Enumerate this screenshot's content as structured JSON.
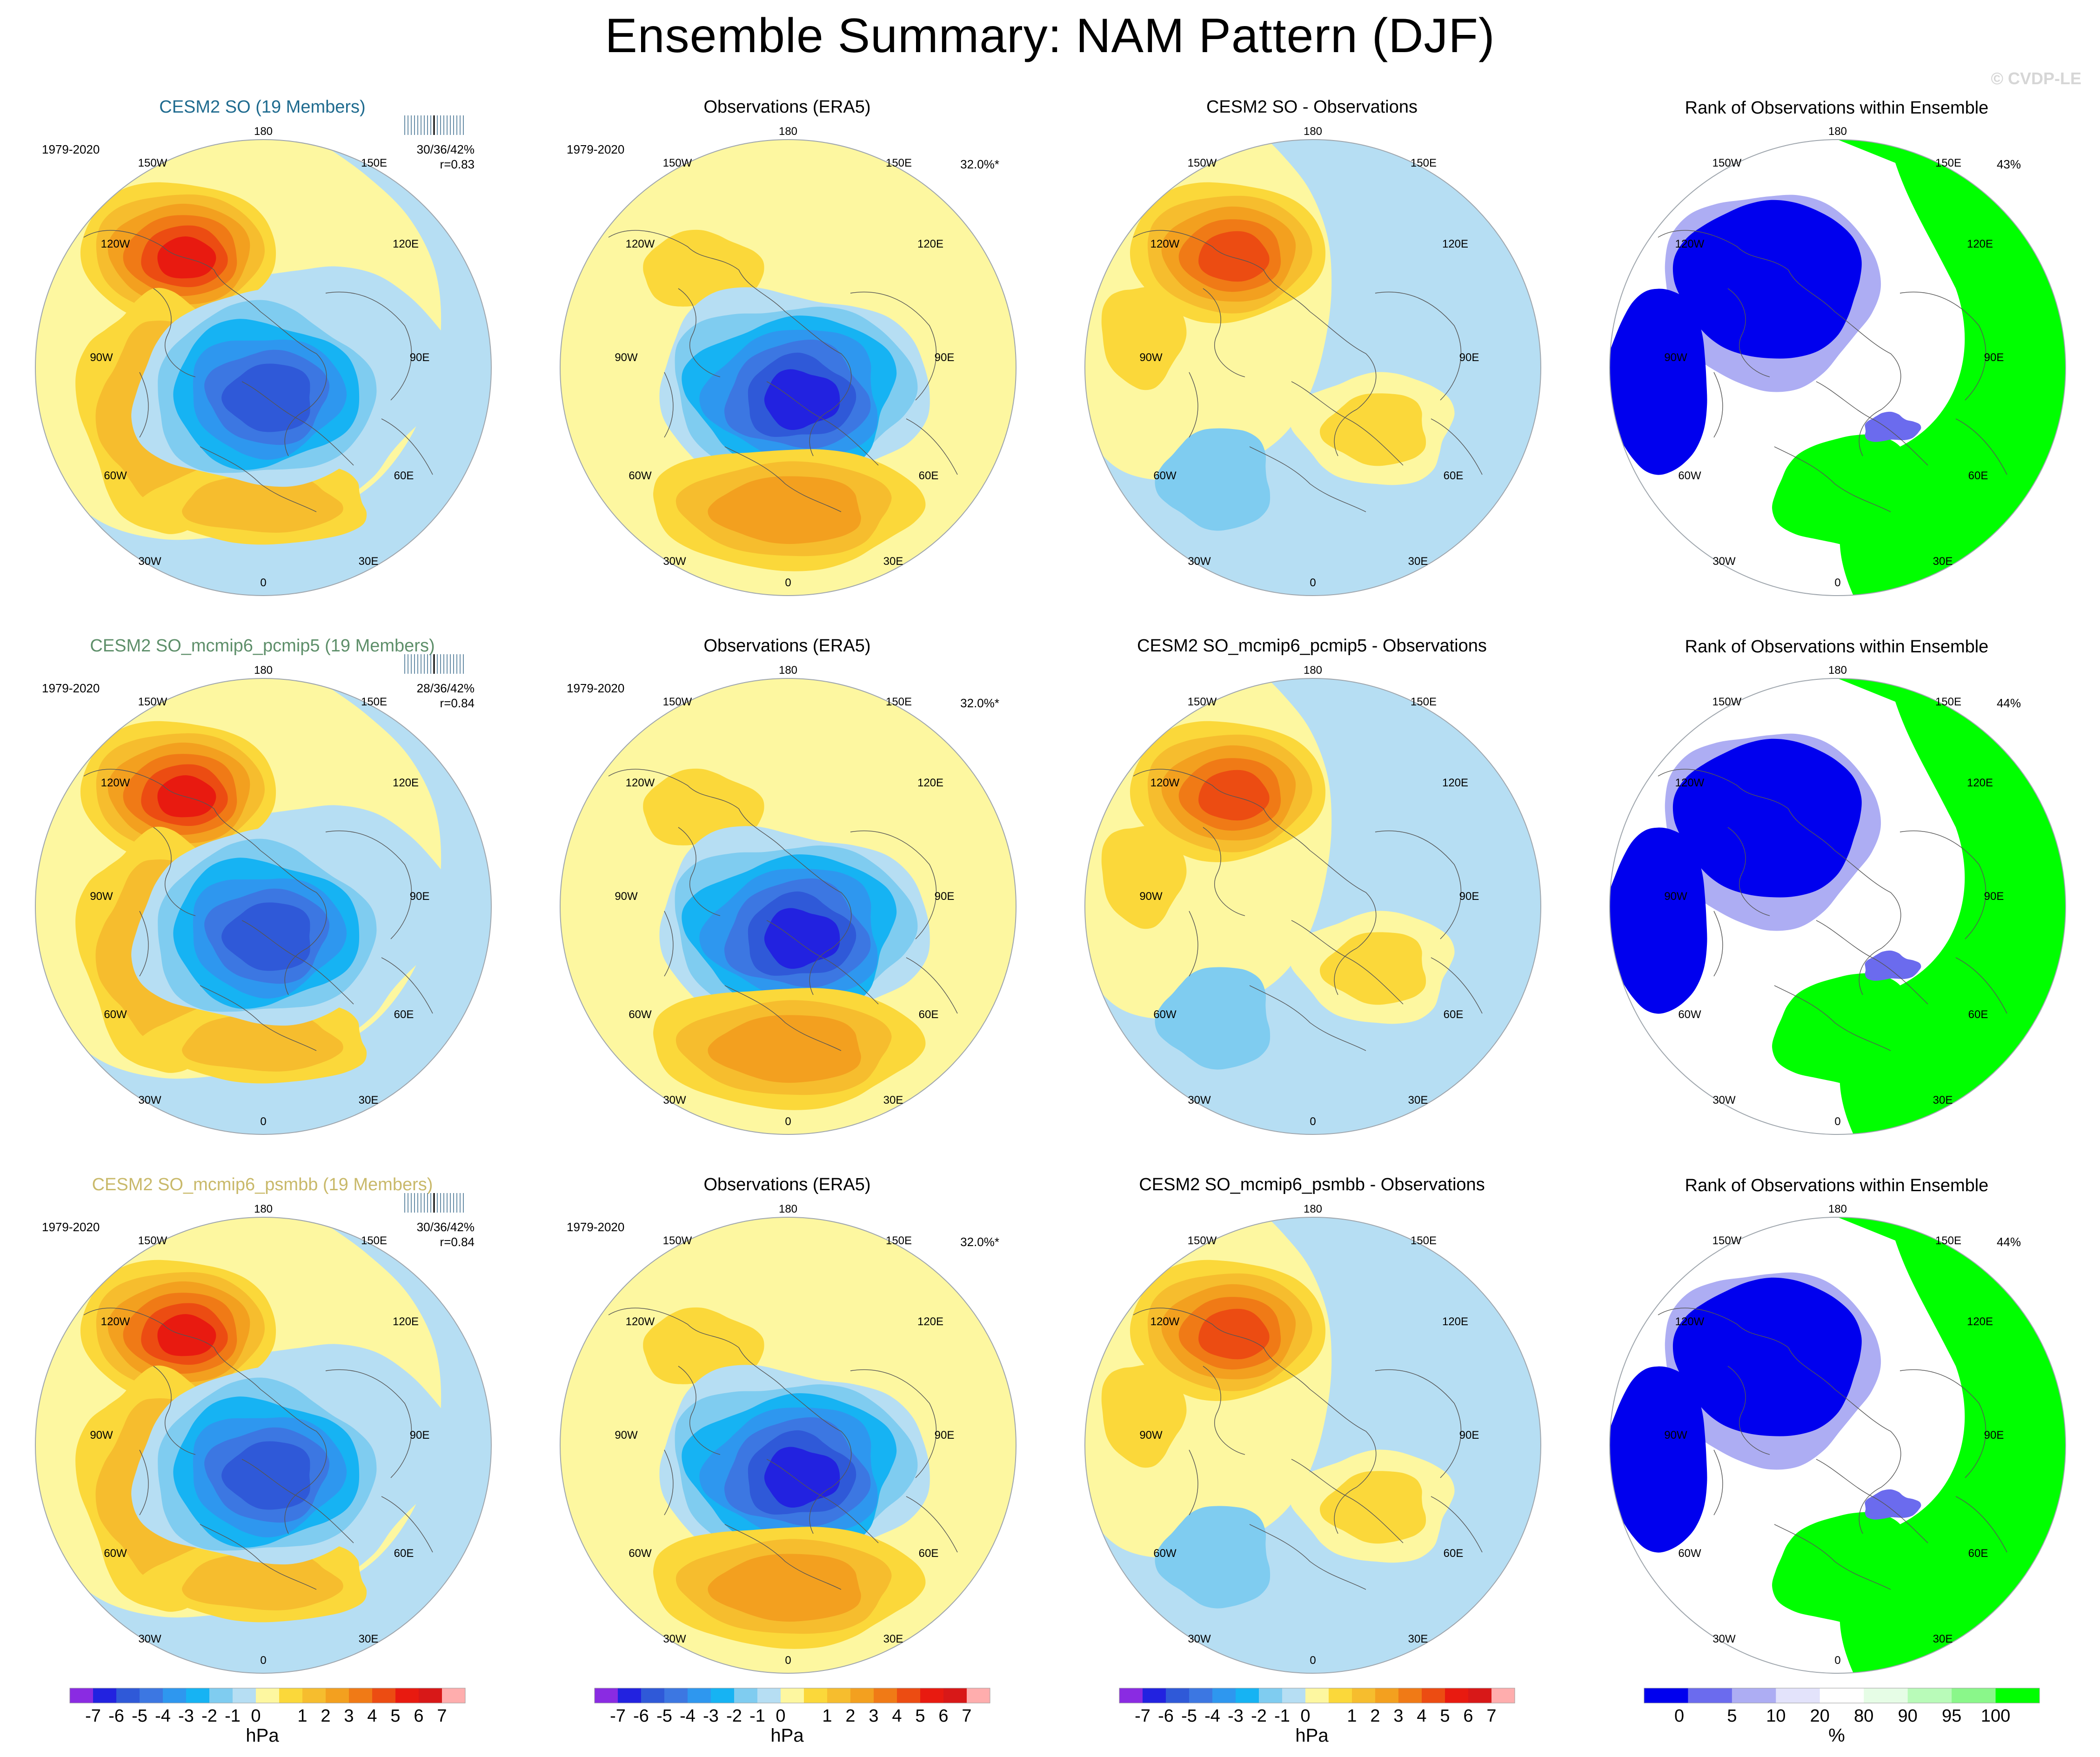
{
  "page": {
    "title": "Ensemble Summary: NAM Pattern (DJF)",
    "watermark": "© CVDP-LE"
  },
  "colors": {
    "neg7": "#8a2be2",
    "neg6": "#2222e0",
    "neg5": "#2f59d8",
    "neg4": "#3c77e2",
    "neg3": "#2e97ef",
    "neg2": "#16b3f3",
    "neg1": "#7fccf0",
    "zero_neg": "#b6def3",
    "zero_pos": "#fdf7a0",
    "pos1": "#fbd83a",
    "pos2": "#f6bd2e",
    "pos3": "#f3a01f",
    "pos4": "#f07a16",
    "pos5": "#ec4c12",
    "pos6": "#e81a10",
    "pos7": "#d81818",
    "pos8": "#ffadad",
    "rank_0": "#0000ee",
    "rank_5": "#6b6bee",
    "rank_10": "#adadf3",
    "rank_20": "#e3e3fb",
    "rank_mid": "#ffffff",
    "rank_80": "#e6fde6",
    "rank_90": "#b9fbb9",
    "rank_95": "#8af78a",
    "rank_100": "#00ff00",
    "title_row1": "#1f6b8f",
    "title_row2": "#5e8f6a",
    "title_row3": "#c9b96a"
  },
  "longitudes": [
    "180",
    "150E",
    "120E",
    "90E",
    "60E",
    "30E",
    "0",
    "30W",
    "60W",
    "90W",
    "120W",
    "150W"
  ],
  "rows": [
    {
      "model": {
        "title": "CESM2 SO (19 Members)",
        "period": "1979-2020",
        "stats": "30/36/42%",
        "corr": "r=0.83"
      },
      "obs": {
        "title": "Observations (ERA5)",
        "period": "1979-2020",
        "pct": "32.0%*"
      },
      "diff": {
        "title": "CESM2 SO - Observations"
      },
      "rank": {
        "title": "Rank of Observations within Ensemble",
        "pct": "43%"
      }
    },
    {
      "model": {
        "title": "CESM2 SO_mcmip6_pcmip5 (19 Members)",
        "period": "1979-2020",
        "stats": "28/36/42%",
        "corr": "r=0.84"
      },
      "obs": {
        "title": "Observations (ERA5)",
        "period": "1979-2020",
        "pct": "32.0%*"
      },
      "diff": {
        "title": "CESM2 SO_mcmip6_pcmip5 - Observations"
      },
      "rank": {
        "title": "Rank of Observations within Ensemble",
        "pct": "44%"
      }
    },
    {
      "model": {
        "title": "CESM2 SO_mcmip6_psmbb (19 Members)",
        "period": "1979-2020",
        "stats": "30/36/42%",
        "corr": "r=0.84"
      },
      "obs": {
        "title": "Observations (ERA5)",
        "period": "1979-2020",
        "pct": "32.0%*"
      },
      "diff": {
        "title": "CESM2 SO_mcmip6_psmbb - Observations"
      },
      "rank": {
        "title": "Rank of Observations within Ensemble",
        "pct": "44%"
      }
    }
  ],
  "colorbars": {
    "hpa": {
      "labels": [
        "-7",
        "-6",
        "-5",
        "-4",
        "-3",
        "-2",
        "-1",
        "0",
        "1",
        "2",
        "3",
        "4",
        "5",
        "6",
        "7"
      ],
      "unit": "hPa"
    },
    "rank": {
      "labels": [
        "0",
        "5",
        "10",
        "20",
        "80",
        "90",
        "95",
        "100"
      ],
      "unit": "%"
    }
  }
}
